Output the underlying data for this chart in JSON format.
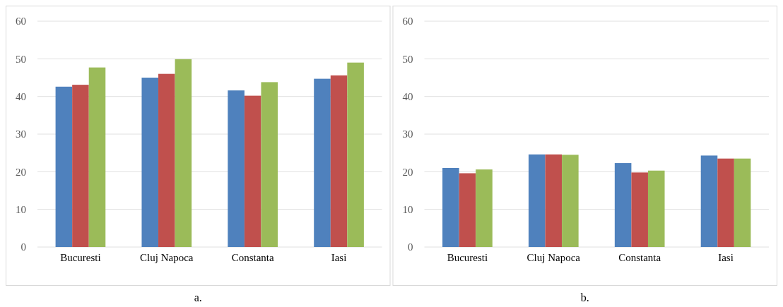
{
  "chart_data": [
    {
      "type": "bar",
      "categories": [
        "Bucuresti",
        "Cluj Napoca",
        "Constanta",
        "Iasi"
      ],
      "ylim": [
        0,
        60
      ],
      "yticks": [
        0,
        10,
        20,
        30,
        40,
        50,
        60
      ],
      "grid": "y",
      "annotations": [
        "a."
      ],
      "series": [
        {
          "color": "#4f81bd",
          "values": [
            42.6,
            45.0,
            41.6,
            44.7
          ]
        },
        {
          "color": "#c0504d",
          "values": [
            43.1,
            46.0,
            40.2,
            45.6
          ]
        },
        {
          "color": "#9bbb59",
          "values": [
            47.7,
            49.9,
            43.8,
            49.0
          ]
        }
      ]
    },
    {
      "type": "bar",
      "categories": [
        "Bucuresti",
        "Cluj Napoca",
        "Constanta",
        "Iasi"
      ],
      "ylim": [
        0,
        60
      ],
      "yticks": [
        0,
        10,
        20,
        30,
        40,
        50,
        60
      ],
      "grid": "y",
      "annotations": [
        "b."
      ],
      "series": [
        {
          "color": "#4f81bd",
          "values": [
            21.0,
            24.6,
            22.3,
            24.3
          ]
        },
        {
          "color": "#c0504d",
          "values": [
            19.6,
            24.6,
            19.8,
            23.5
          ]
        },
        {
          "color": "#9bbb59",
          "values": [
            20.6,
            24.5,
            20.3,
            23.5
          ]
        }
      ]
    }
  ]
}
